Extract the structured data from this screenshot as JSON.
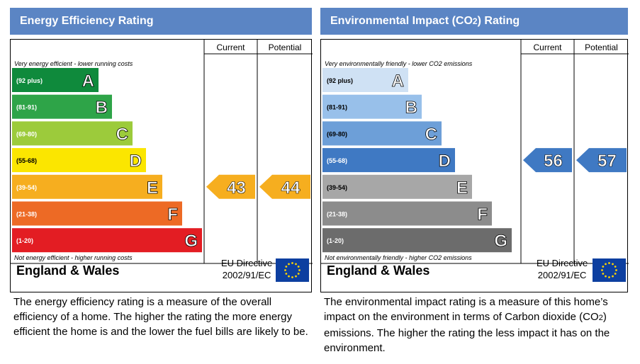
{
  "energy": {
    "title": "Energy Efficiency Rating",
    "col_current": "Current",
    "col_potential": "Potential",
    "top_note": "Very energy efficient - lower running costs",
    "bottom_note": "Not energy efficient - higher running costs",
    "region": "England & Wales",
    "directive_line1": "EU Directive",
    "directive_line2": "2002/91/EC",
    "description": "The energy efficiency rating is a measure of the overall efficiency of a home. The higher the rating the more energy efficient the home is and the lower the fuel bills are likely to be."
  },
  "environment": {
    "title": "Environmental Impact (CO2) Rating",
    "col_current": "Current",
    "col_potential": "Potential",
    "top_note": "Very environmentally friendly - lower CO2 emissions",
    "bottom_note": "Not environmentally friendly - higher CO2 emissions",
    "region": "England & Wales",
    "directive_line1": "EU Directive",
    "directive_line2": "2002/91/EC",
    "description": "The environmental impact rating is a measure of this home's impact on the environment in terms of Carbon dioxide (CO2) emissions. The higher the rating the less impact it has on the environment."
  },
  "chart_data": [
    {
      "type": "bar",
      "categories": [
        "A",
        "B",
        "C",
        "D",
        "E",
        "F",
        "G"
      ],
      "ranges": [
        "(92 plus)",
        "(81-91)",
        "(69-80)",
        "(55-68)",
        "(39-54)",
        "(21-38)",
        "(1-20)"
      ],
      "colors": [
        "#0f8a3c",
        "#2ea448",
        "#9ccb3b",
        "#fbe600",
        "#f6ae1f",
        "#ed6a25",
        "#e31d23"
      ],
      "current": 43,
      "potential": 44,
      "current_band": "E",
      "potential_band": "E",
      "arrow_color": "#f6ae1f"
    },
    {
      "type": "bar",
      "categories": [
        "A",
        "B",
        "C",
        "D",
        "E",
        "F",
        "G"
      ],
      "ranges": [
        "(92 plus)",
        "(81-91)",
        "(69-80)",
        "(55-68)",
        "(39-54)",
        "(21-38)",
        "(1-20)"
      ],
      "colors": [
        "#cfe1f4",
        "#98c0ea",
        "#6d9fd8",
        "#3f79c3",
        "#a7a7a7",
        "#8c8c8c",
        "#6c6c6c"
      ],
      "current": 56,
      "potential": 57,
      "current_band": "D",
      "potential_band": "D",
      "arrow_color": "#3f79c3"
    }
  ]
}
